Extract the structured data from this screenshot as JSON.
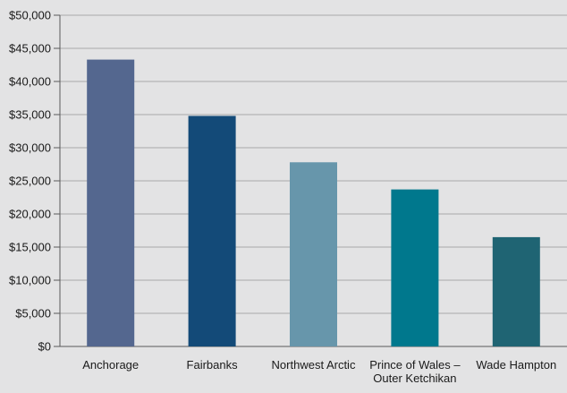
{
  "chart_data": {
    "type": "bar",
    "categories": [
      "Anchorage",
      "Fairbanks",
      "Northwest Arctic",
      "Prince of Wales – Outer Ketchikan",
      "Wade Hampton"
    ],
    "category_lines": [
      [
        "Anchorage"
      ],
      [
        "Fairbanks"
      ],
      [
        "Northwest Arctic"
      ],
      [
        "Prince of Wales –",
        "Outer Ketchikan"
      ],
      [
        "Wade Hampton"
      ]
    ],
    "values": [
      43300,
      34800,
      27800,
      23700,
      16500
    ],
    "bar_colors": [
      "#54678f",
      "#134a78",
      "#6796ab",
      "#00788d",
      "#1f6473"
    ],
    "title": "",
    "xlabel": "",
    "ylabel": "",
    "ylim": [
      0,
      50000
    ],
    "yticks": [
      0,
      5000,
      10000,
      15000,
      20000,
      25000,
      30000,
      35000,
      40000,
      45000,
      50000
    ],
    "ytick_labels": [
      "$0",
      "$5,000",
      "$10,000",
      "$15,000",
      "$20,000",
      "$25,000",
      "$30,000",
      "$35,000",
      "$40,000",
      "$45,000",
      "$50,000"
    ],
    "grid": true,
    "legend": "none"
  }
}
